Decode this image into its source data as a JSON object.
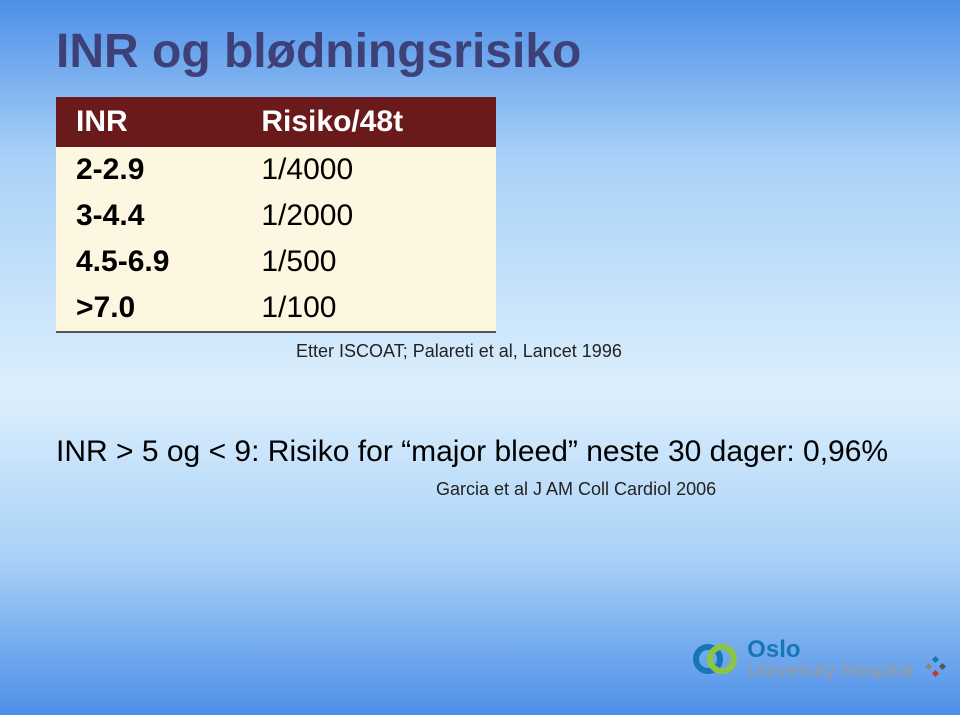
{
  "title": "INR og blødningsrisiko",
  "table": {
    "headers": {
      "col1": "INR",
      "col2": "Risiko/48t"
    },
    "rows": [
      {
        "inr": "2-2.9",
        "risk": "1/4000"
      },
      {
        "inr": "3-4.4",
        "risk": "1/2000"
      },
      {
        "inr": "4.5-6.9",
        "risk": "1/500"
      },
      {
        "inr": ">7.0",
        "risk": "1/100"
      }
    ],
    "header_bg": "#6a1a1a",
    "header_text_color": "#ffffff",
    "cell_bg": "#fdf6e0",
    "font_size_header": 30,
    "font_size_cell": 30
  },
  "citation1": "Etter ISCOAT; Palareti et al, Lancet 1996",
  "body_text": "INR > 5 og < 9: Risiko for “major bleed” neste 30 dager: 0,96%",
  "citation2": "Garcia et al J AM Coll Cardiol 2006",
  "logo": {
    "line1": "Oslo",
    "line2": "University Hospital",
    "primary_color": "#1676b6",
    "secondary_color": "#8cc63f"
  },
  "background_gradient": [
    "#4d8fe8",
    "#a9d1f7",
    "#dceffd",
    "#a9d1f7",
    "#4d8fe8"
  ]
}
